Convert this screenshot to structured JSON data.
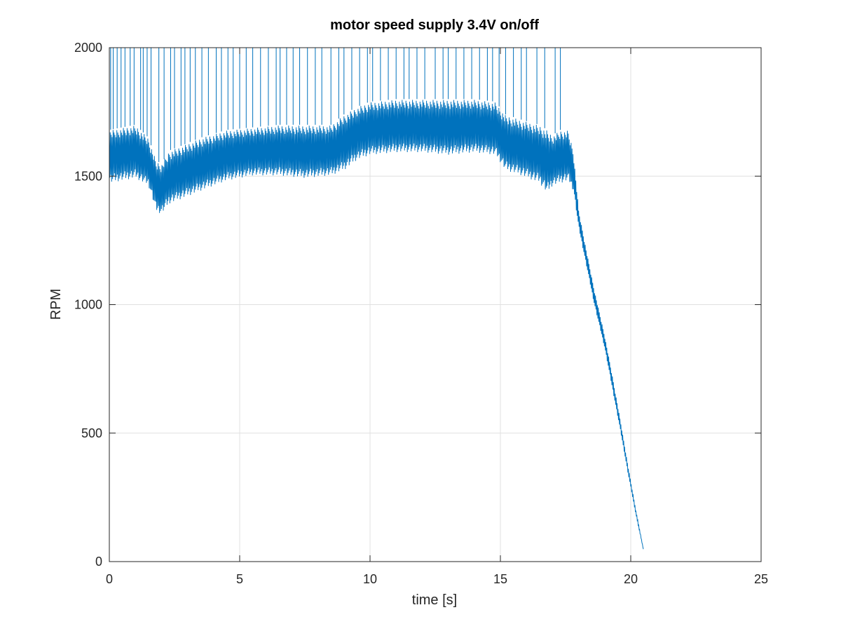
{
  "chart_data": {
    "type": "line",
    "title": "motor speed supply 3.4V on/off",
    "xlabel": "time [s]",
    "ylabel": "RPM",
    "xlim": [
      0,
      25
    ],
    "ylim": [
      0,
      2000
    ],
    "xticks": [
      0,
      5,
      10,
      15,
      20,
      25
    ],
    "yticks": [
      0,
      500,
      1000,
      1500,
      2000
    ],
    "xtick_labels": [
      "0",
      "5",
      "10",
      "15",
      "20",
      "25"
    ],
    "ytick_labels": [
      "0",
      "500",
      "1000",
      "1500",
      "2000"
    ],
    "grid": true,
    "legend": "none",
    "series": [
      {
        "color": "#0072bd",
        "note_envelope": "oscillating band; lower/upper bounds of the dense signal",
        "x": [
          0,
          0.5,
          1.0,
          1.5,
          1.8,
          2.0,
          2.3,
          2.8,
          3.5,
          4.5,
          5.5,
          6.5,
          7.5,
          8.5,
          9.0,
          9.5,
          10.0,
          11.0,
          12.0,
          13.0,
          14.0,
          14.8,
          15.2,
          15.8,
          16.5,
          16.8,
          17.0,
          17.3,
          17.6,
          17.8,
          18.0,
          18.3,
          18.6,
          19.0,
          19.3,
          19.6,
          19.9,
          20.2,
          20.5
        ],
        "lower": [
          1470,
          1480,
          1490,
          1460,
          1360,
          1350,
          1390,
          1410,
          1440,
          1480,
          1500,
          1500,
          1490,
          1500,
          1520,
          1560,
          1580,
          1590,
          1590,
          1580,
          1590,
          1580,
          1520,
          1500,
          1470,
          1430,
          1460,
          1470,
          1480,
          1440,
          1300,
          1150,
          1000,
          830,
          670,
          510,
          340,
          180,
          40
        ],
        "upper": [
          1680,
          1690,
          1700,
          1650,
          1560,
          1550,
          1600,
          1620,
          1650,
          1680,
          1690,
          1700,
          1700,
          1700,
          1740,
          1770,
          1790,
          1800,
          1800,
          1800,
          1800,
          1790,
          1740,
          1720,
          1700,
          1680,
          1660,
          1680,
          1680,
          1600,
          1370,
          1210,
          1060,
          880,
          720,
          550,
          370,
          200,
          40
        ]
      }
    ],
    "spikes_to": 2000,
    "spike_times": [
      0.05,
      0.15,
      0.3,
      0.45,
      0.6,
      0.8,
      0.95,
      1.2,
      1.3,
      1.45,
      1.6,
      1.9,
      2.1,
      2.35,
      2.5,
      2.75,
      2.9,
      3.1,
      3.3,
      3.55,
      3.8,
      4.1,
      4.3,
      4.55,
      4.75,
      5.0,
      5.25,
      5.5,
      5.8,
      6.1,
      6.4,
      6.55,
      6.8,
      7.05,
      7.3,
      7.6,
      7.9,
      8.15,
      8.5,
      8.8,
      9.0,
      9.3,
      9.6,
      9.9,
      10.1,
      10.4,
      10.7,
      11.0,
      11.3,
      11.5,
      11.8,
      12.1,
      12.5,
      12.8,
      13.0,
      13.3,
      13.6,
      13.9,
      14.2,
      14.5,
      14.7,
      14.95,
      15.2,
      15.5,
      15.8,
      16.0,
      16.4,
      16.7,
      17.1,
      17.3
    ]
  }
}
